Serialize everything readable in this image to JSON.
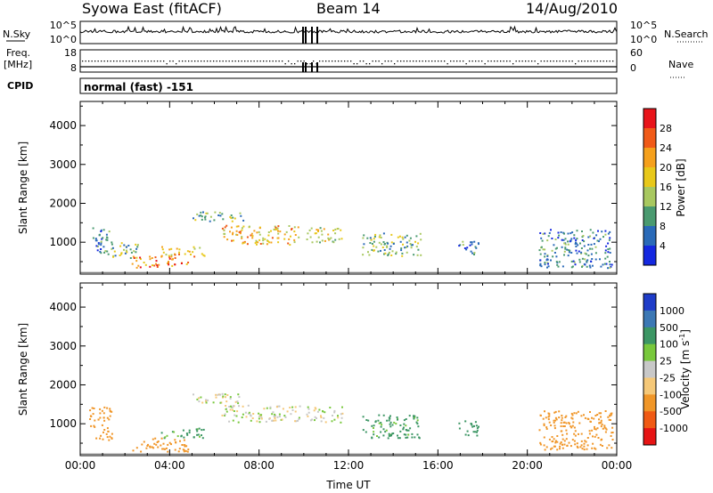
{
  "header": {
    "title": "Syowa East (fitACF)",
    "beam": "Beam 14",
    "date": "14/Aug/2010"
  },
  "top_panels": {
    "nsky_label": "N.Sky",
    "nsky_ticks": [
      "10^5",
      "10^0"
    ],
    "nsearch_label": "N.Search",
    "nsearch_ticks": [
      "10^5",
      "10^0"
    ],
    "freq_label": "Freq.",
    "freq_unit": "[MHz]",
    "freq_ticks": [
      "18",
      "8"
    ],
    "nave_label": "Nave",
    "nave_ticks": [
      "60",
      "0"
    ],
    "cpid_label": "CPID",
    "cpid_value": "normal (fast) -151"
  },
  "chart_data": [
    {
      "type": "heatmap",
      "name": "power",
      "ylabel": "Slant Range [km]",
      "ylim": [
        180,
        4620
      ],
      "yticks": [
        1000,
        2000,
        3000,
        4000
      ],
      "xlim": [
        0,
        24
      ],
      "colorbar": {
        "label": "Power [dB]",
        "ticks": [
          "28",
          "24",
          "20",
          "16",
          "12",
          "8",
          "4"
        ],
        "colors": [
          "#e8141a",
          "#f05a18",
          "#f5a01c",
          "#e8c81a",
          "#a8c860",
          "#4a9a70",
          "#2a6ab8",
          "#1428e0"
        ]
      },
      "echo_regions": [
        {
          "t0": 0.5,
          "t1": 1.4,
          "r0": 700,
          "r1": 1450,
          "level": 8
        },
        {
          "t0": 1.3,
          "t1": 2.6,
          "r0": 600,
          "r1": 1000,
          "level": 12
        },
        {
          "t0": 2.3,
          "t1": 4.8,
          "r0": 350,
          "r1": 650,
          "level": 24
        },
        {
          "t0": 3.6,
          "t1": 5.6,
          "r0": 650,
          "r1": 900,
          "level": 20
        },
        {
          "t0": 5.0,
          "t1": 7.3,
          "r0": 1550,
          "r1": 1800,
          "level": 12
        },
        {
          "t0": 6.3,
          "t1": 9.8,
          "r0": 950,
          "r1": 1450,
          "level": 20
        },
        {
          "t0": 10.1,
          "t1": 11.7,
          "r0": 1000,
          "r1": 1400,
          "level": 16
        },
        {
          "t0": 12.6,
          "t1": 15.2,
          "r0": 650,
          "r1": 1250,
          "level": 12
        },
        {
          "t0": 16.9,
          "t1": 17.8,
          "r0": 700,
          "r1": 1100,
          "level": 8
        },
        {
          "t0": 20.5,
          "t1": 23.8,
          "r0": 350,
          "r1": 1350,
          "level": 8
        }
      ]
    },
    {
      "type": "heatmap",
      "name": "velocity",
      "ylabel": "Slant Range [km]",
      "xlabel": "Time UT",
      "ylim": [
        180,
        4620
      ],
      "yticks": [
        1000,
        2000,
        3000,
        4000
      ],
      "xlim": [
        0,
        24
      ],
      "xticks": [
        "00:00",
        "04:00",
        "08:00",
        "12:00",
        "16:00",
        "20:00",
        "00:00"
      ],
      "colorbar": {
        "label": "Velocity [m s",
        "label_sup": "-1",
        "label_end": "]",
        "ticks": [
          "1000",
          "500",
          "100",
          "25",
          "-25",
          "-100",
          "-500",
          "-1000"
        ],
        "colors": [
          "#1e3cc8",
          "#3c78b4",
          "#3c9664",
          "#78c83c",
          "#c8c8c8",
          "#f5c878",
          "#f09628",
          "#f05a14",
          "#e61414"
        ]
      },
      "echo_regions": [
        {
          "t0": 0.4,
          "t1": 1.4,
          "r0": 600,
          "r1": 1450,
          "level": -200
        },
        {
          "t0": 2.3,
          "t1": 4.8,
          "r0": 300,
          "r1": 650,
          "level": -200
        },
        {
          "t0": 3.6,
          "t1": 5.6,
          "r0": 650,
          "r1": 900,
          "level": 150
        },
        {
          "t0": 5.0,
          "t1": 7.3,
          "r0": 1550,
          "r1": 1800,
          "level": 0
        },
        {
          "t0": 6.3,
          "t1": 9.8,
          "r0": 1050,
          "r1": 1500,
          "level": 0
        },
        {
          "t0": 10.1,
          "t1": 11.7,
          "r0": 1050,
          "r1": 1450,
          "level": 0
        },
        {
          "t0": 12.6,
          "t1": 15.2,
          "r0": 650,
          "r1": 1250,
          "level": 150
        },
        {
          "t0": 16.9,
          "t1": 17.8,
          "r0": 700,
          "r1": 1100,
          "level": 400
        },
        {
          "t0": 20.5,
          "t1": 23.8,
          "r0": 350,
          "r1": 1350,
          "level": -200
        }
      ]
    }
  ]
}
